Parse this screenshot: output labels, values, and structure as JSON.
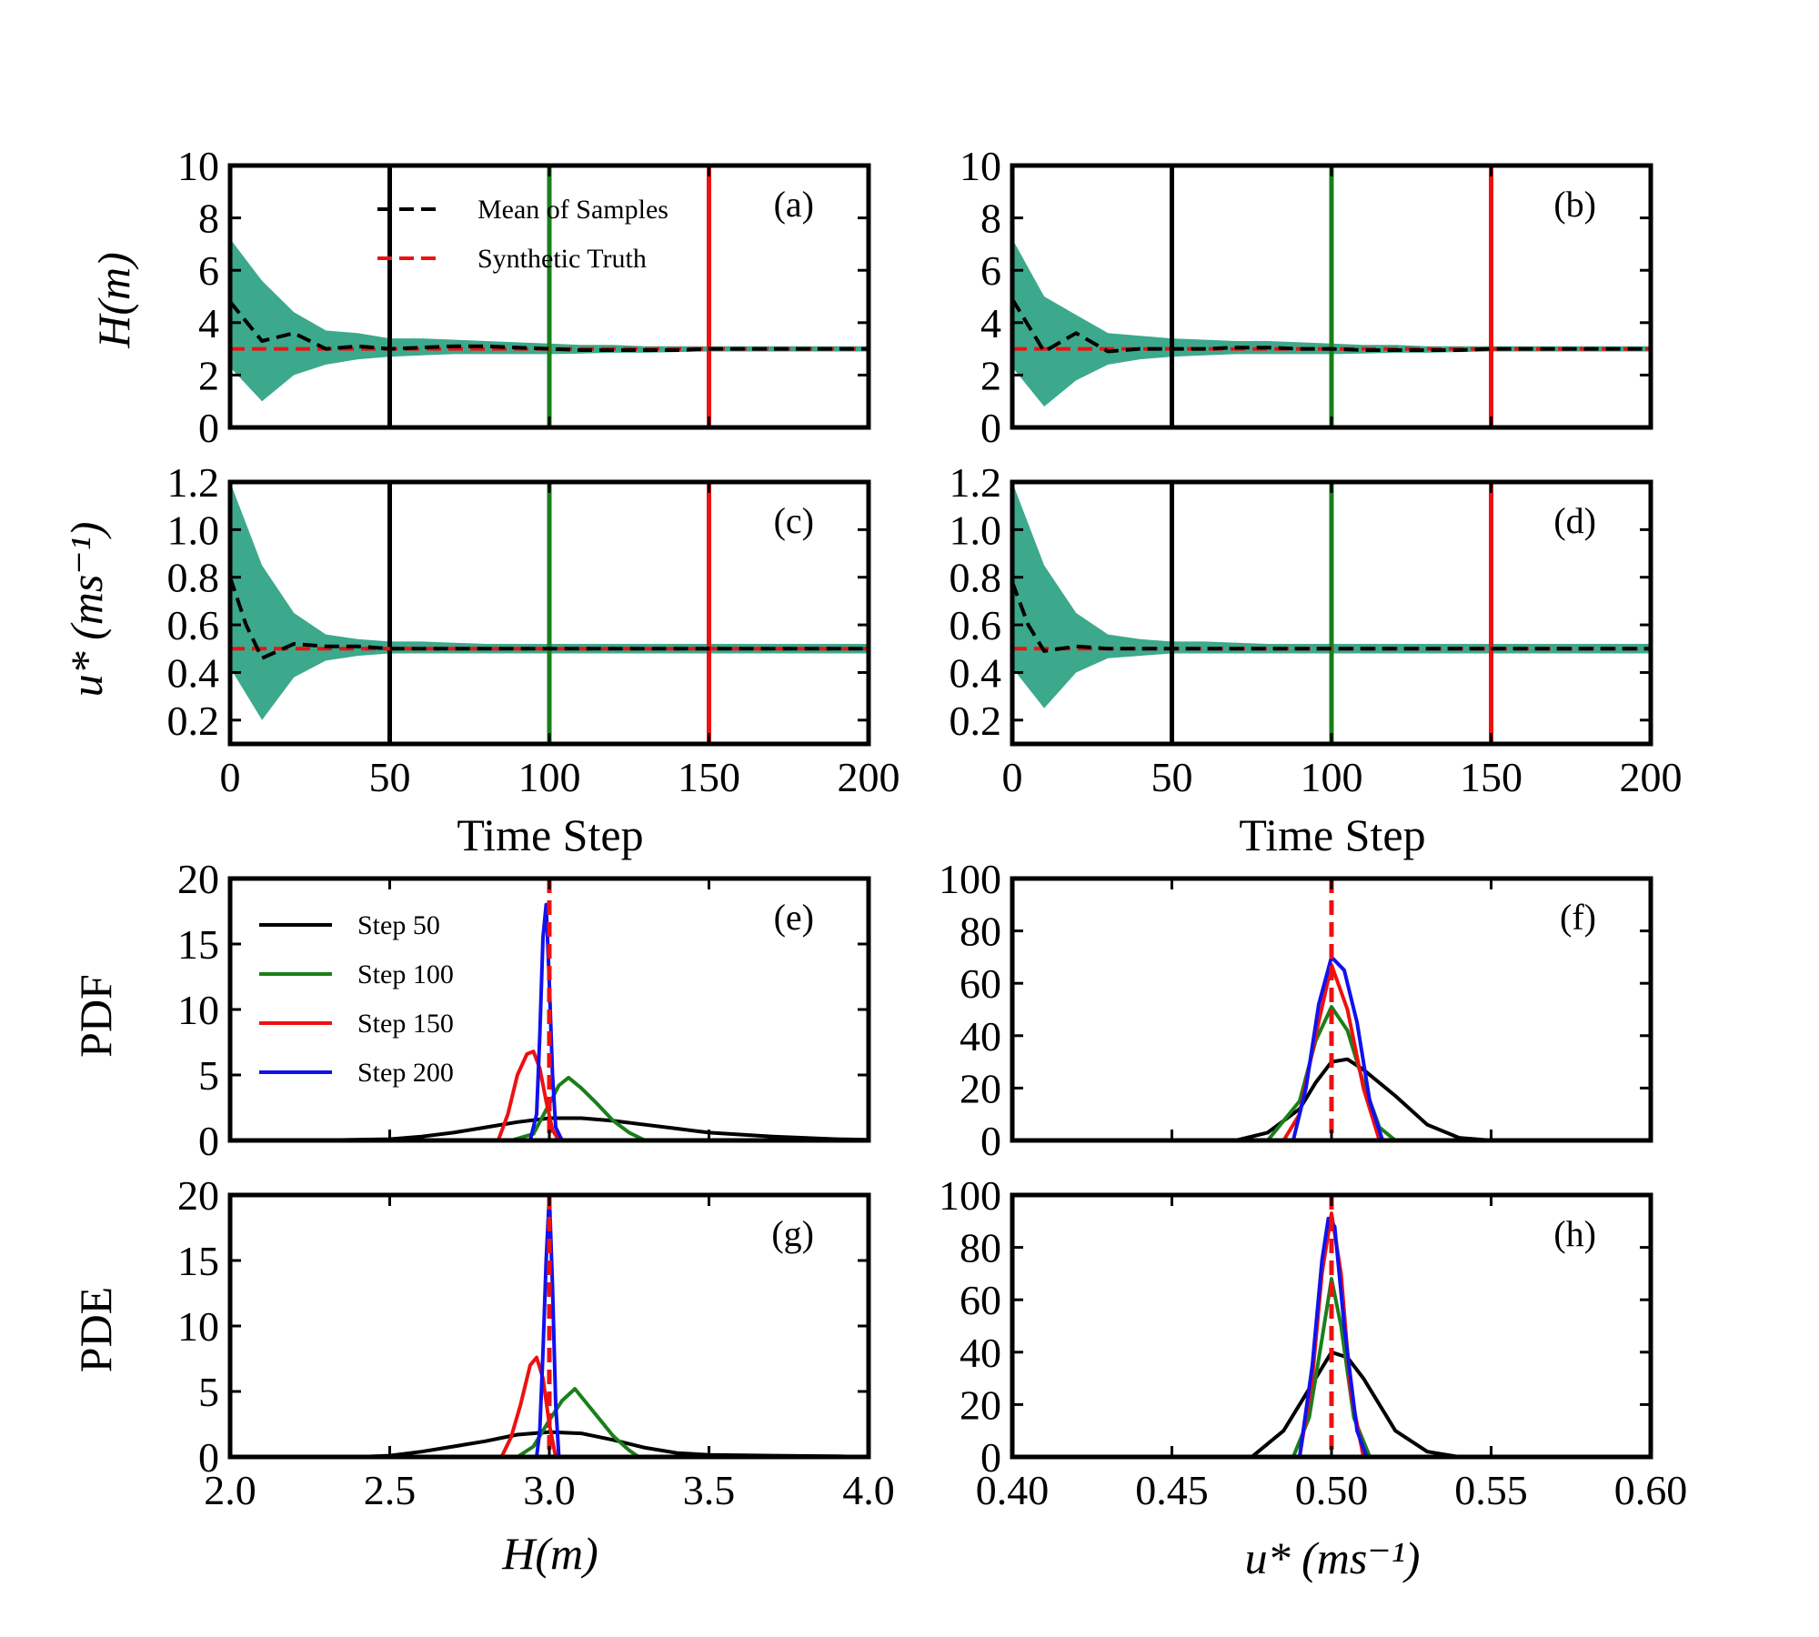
{
  "figure": {
    "xlabel_time": "Time Step",
    "ylabel_H": "H(m)",
    "ylabel_u": "u* (ms⁻¹)",
    "ylabel_pdf": "PDF",
    "ylabel_pde": "PDE",
    "xlabel_H": "H(m)",
    "xlabel_u": "u* (ms⁻¹)",
    "colors": {
      "ensemble": "#1a9a78",
      "mean": "#000000",
      "truth": "#ee1111",
      "step50": "#000000",
      "step100": "#1a7f1a",
      "step150": "#ee1111",
      "step200": "#1111ee"
    }
  },
  "chart_data": [
    {
      "id": "a",
      "panel_label": "(a)",
      "type": "line",
      "xlim": [
        0,
        200
      ],
      "ylim": [
        0,
        10
      ],
      "yticks": [
        "0",
        "2",
        "4",
        "6",
        "8",
        "10"
      ],
      "legend": [
        "Mean of Samples",
        "Synthetic Truth"
      ],
      "vlines": [
        {
          "x": 50,
          "label": "Step 50"
        },
        {
          "x": 100,
          "label": "Step 100"
        },
        {
          "x": 150,
          "label": "Step 150"
        },
        {
          "x": 200,
          "label": "Step 200"
        }
      ],
      "series": [
        {
          "name": "Mean of Samples",
          "x": [
            0,
            10,
            20,
            30,
            40,
            50,
            60,
            70,
            80,
            90,
            100,
            110,
            120,
            130,
            140,
            150,
            160,
            170,
            180,
            190,
            200
          ],
          "values": [
            4.8,
            3.3,
            3.6,
            3.0,
            3.1,
            3.0,
            3.05,
            3.1,
            3.1,
            3.05,
            3.0,
            2.95,
            2.95,
            2.95,
            2.95,
            3.0,
            3.0,
            3.0,
            3.0,
            3.0,
            3.0
          ]
        },
        {
          "name": "Synthetic Truth",
          "x": [
            0,
            200
          ],
          "values": [
            3.0,
            3.0
          ]
        },
        {
          "name": "Ensemble upper",
          "x": [
            0,
            10,
            20,
            30,
            40,
            50,
            60,
            70,
            80,
            90,
            100,
            110,
            120,
            130,
            140,
            150,
            160,
            170,
            180,
            190,
            200
          ],
          "values": [
            7.2,
            5.6,
            4.4,
            3.7,
            3.6,
            3.4,
            3.4,
            3.35,
            3.3,
            3.25,
            3.2,
            3.15,
            3.15,
            3.1,
            3.1,
            3.1,
            3.1,
            3.1,
            3.1,
            3.1,
            3.1
          ]
        },
        {
          "name": "Ensemble lower",
          "x": [
            0,
            10,
            20,
            30,
            40,
            50,
            60,
            70,
            80,
            90,
            100,
            110,
            120,
            130,
            140,
            150,
            160,
            170,
            180,
            190,
            200
          ],
          "values": [
            2.3,
            1.0,
            2.0,
            2.4,
            2.6,
            2.7,
            2.75,
            2.8,
            2.8,
            2.8,
            2.8,
            2.82,
            2.85,
            2.85,
            2.88,
            2.9,
            2.9,
            2.9,
            2.9,
            2.9,
            2.9
          ]
        }
      ]
    },
    {
      "id": "b",
      "panel_label": "(b)",
      "type": "line",
      "xlim": [
        0,
        200
      ],
      "ylim": [
        0,
        10
      ],
      "yticks": [
        "0",
        "2",
        "4",
        "6",
        "8",
        "10"
      ],
      "vlines": [
        {
          "x": 50
        },
        {
          "x": 100
        },
        {
          "x": 150
        },
        {
          "x": 200
        }
      ],
      "series": [
        {
          "name": "Mean of Samples",
          "x": [
            0,
            10,
            20,
            30,
            40,
            50,
            60,
            70,
            80,
            90,
            100,
            110,
            120,
            130,
            140,
            150,
            160,
            170,
            180,
            190,
            200
          ],
          "values": [
            4.9,
            2.9,
            3.6,
            2.9,
            3.0,
            3.0,
            3.0,
            3.05,
            3.05,
            3.0,
            3.0,
            2.95,
            2.95,
            2.95,
            2.95,
            3.0,
            3.0,
            3.0,
            3.0,
            3.0,
            3.0
          ]
        },
        {
          "name": "Synthetic Truth",
          "x": [
            0,
            200
          ],
          "values": [
            3.0,
            3.0
          ]
        },
        {
          "name": "Ensemble upper",
          "x": [
            0,
            10,
            20,
            30,
            40,
            50,
            60,
            70,
            80,
            90,
            100,
            110,
            120,
            130,
            140,
            150,
            160,
            170,
            180,
            190,
            200
          ],
          "values": [
            7.2,
            5.0,
            4.3,
            3.6,
            3.5,
            3.4,
            3.35,
            3.3,
            3.3,
            3.25,
            3.2,
            3.15,
            3.15,
            3.1,
            3.1,
            3.1,
            3.1,
            3.1,
            3.1,
            3.1,
            3.1
          ]
        },
        {
          "name": "Ensemble lower",
          "x": [
            0,
            10,
            20,
            30,
            40,
            50,
            60,
            70,
            80,
            90,
            100,
            110,
            120,
            130,
            140,
            150,
            160,
            170,
            180,
            190,
            200
          ],
          "values": [
            2.3,
            0.8,
            1.8,
            2.4,
            2.6,
            2.7,
            2.75,
            2.8,
            2.8,
            2.8,
            2.8,
            2.82,
            2.85,
            2.85,
            2.88,
            2.9,
            2.9,
            2.9,
            2.9,
            2.9,
            2.9
          ]
        }
      ]
    },
    {
      "id": "c",
      "panel_label": "(c)",
      "type": "line",
      "xlim": [
        0,
        200
      ],
      "ylim": [
        0.1,
        1.2
      ],
      "yticks": [
        "0.2",
        "0.4",
        "0.6",
        "0.8",
        "1.0",
        "1.2"
      ],
      "xticks": [
        "0",
        "50",
        "100",
        "150",
        "200"
      ],
      "xlabel": "Time Step",
      "vlines": [
        {
          "x": 50
        },
        {
          "x": 100
        },
        {
          "x": 150
        },
        {
          "x": 200
        }
      ],
      "series": [
        {
          "name": "Mean of Samples",
          "x": [
            0,
            5,
            10,
            15,
            20,
            30,
            40,
            50,
            200
          ],
          "values": [
            0.8,
            0.6,
            0.46,
            0.49,
            0.52,
            0.51,
            0.51,
            0.5,
            0.5
          ]
        },
        {
          "name": "Synthetic Truth",
          "x": [
            0,
            200
          ],
          "values": [
            0.5,
            0.5
          ]
        },
        {
          "name": "Ensemble upper",
          "x": [
            0,
            10,
            20,
            30,
            40,
            50,
            60,
            80,
            100,
            200
          ],
          "values": [
            1.2,
            0.85,
            0.65,
            0.56,
            0.54,
            0.53,
            0.53,
            0.52,
            0.52,
            0.52
          ]
        },
        {
          "name": "Ensemble lower",
          "x": [
            0,
            10,
            20,
            30,
            40,
            50,
            60,
            80,
            100,
            200
          ],
          "values": [
            0.42,
            0.2,
            0.38,
            0.45,
            0.47,
            0.48,
            0.48,
            0.48,
            0.48,
            0.48
          ]
        }
      ]
    },
    {
      "id": "d",
      "panel_label": "(d)",
      "type": "line",
      "xlim": [
        0,
        200
      ],
      "ylim": [
        0.1,
        1.2
      ],
      "yticks": [
        "0.2",
        "0.4",
        "0.6",
        "0.8",
        "1.0",
        "1.2"
      ],
      "xticks": [
        "0",
        "50",
        "100",
        "150",
        "200"
      ],
      "xlabel": "Time Step",
      "vlines": [
        {
          "x": 50
        },
        {
          "x": 100
        },
        {
          "x": 150
        },
        {
          "x": 200
        }
      ],
      "series": [
        {
          "name": "Mean of Samples",
          "x": [
            0,
            5,
            10,
            20,
            30,
            40,
            50,
            200
          ],
          "values": [
            0.78,
            0.6,
            0.49,
            0.51,
            0.5,
            0.5,
            0.5,
            0.5
          ]
        },
        {
          "name": "Synthetic Truth",
          "x": [
            0,
            200
          ],
          "values": [
            0.5,
            0.5
          ]
        },
        {
          "name": "Ensemble upper",
          "x": [
            0,
            10,
            20,
            30,
            40,
            50,
            60,
            80,
            100,
            200
          ],
          "values": [
            1.2,
            0.85,
            0.65,
            0.56,
            0.54,
            0.53,
            0.53,
            0.52,
            0.52,
            0.52
          ]
        },
        {
          "name": "Ensemble lower",
          "x": [
            0,
            10,
            20,
            30,
            40,
            50,
            60,
            80,
            100,
            200
          ],
          "values": [
            0.42,
            0.25,
            0.4,
            0.46,
            0.47,
            0.48,
            0.48,
            0.48,
            0.48,
            0.48
          ]
        }
      ]
    },
    {
      "id": "e",
      "panel_label": "(e)",
      "type": "line",
      "xlim": [
        2.0,
        4.0
      ],
      "ylim": [
        0,
        20
      ],
      "yticks": [
        "0",
        "5",
        "10",
        "15",
        "20"
      ],
      "ylabel": "PDF",
      "truth": 3.0,
      "legend": [
        "Step 50",
        "Step 100",
        "Step 150",
        "Step 200"
      ],
      "series": [
        {
          "name": "Step 50",
          "x": [
            2.0,
            2.3,
            2.5,
            2.6,
            2.7,
            2.8,
            2.9,
            3.0,
            3.1,
            3.2,
            3.3,
            3.4,
            3.5,
            3.7,
            3.9,
            4.0
          ],
          "values": [
            0,
            0.02,
            0.1,
            0.3,
            0.6,
            1.0,
            1.4,
            1.7,
            1.7,
            1.5,
            1.2,
            0.9,
            0.6,
            0.3,
            0.1,
            0.05
          ]
        },
        {
          "name": "Step 100",
          "x": [
            2.88,
            2.95,
            3.0,
            3.03,
            3.06,
            3.1,
            3.15,
            3.2,
            3.25,
            3.3
          ],
          "values": [
            0,
            0.5,
            2.8,
            4.2,
            4.8,
            4.0,
            2.8,
            1.5,
            0.6,
            0
          ]
        },
        {
          "name": "Step 150",
          "x": [
            2.84,
            2.87,
            2.9,
            2.93,
            2.95,
            2.97,
            2.99,
            3.01,
            3.03
          ],
          "values": [
            0,
            2.0,
            5.0,
            6.6,
            6.8,
            5.5,
            3.0,
            0.8,
            0
          ]
        },
        {
          "name": "Step 200",
          "x": [
            2.94,
            2.96,
            2.97,
            2.98,
            2.99,
            3.0,
            3.01,
            3.02,
            3.04
          ],
          "values": [
            0,
            2.0,
            8.0,
            15.5,
            18.0,
            12.0,
            5.0,
            1.0,
            0
          ]
        }
      ]
    },
    {
      "id": "f",
      "panel_label": "(f)",
      "type": "line",
      "xlim": [
        0.4,
        0.6
      ],
      "ylim": [
        0,
        100
      ],
      "yticks": [
        "0",
        "20",
        "40",
        "60",
        "80",
        "100"
      ],
      "truth": 0.5,
      "series": [
        {
          "name": "Step 50",
          "x": [
            0.47,
            0.48,
            0.49,
            0.495,
            0.5,
            0.505,
            0.51,
            0.52,
            0.53,
            0.54,
            0.55
          ],
          "values": [
            0,
            3,
            12,
            22,
            30,
            31,
            27,
            17,
            6,
            1,
            0
          ]
        },
        {
          "name": "Step 100",
          "x": [
            0.48,
            0.49,
            0.495,
            0.5,
            0.505,
            0.51,
            0.515,
            0.52
          ],
          "values": [
            0,
            15,
            38,
            51,
            42,
            22,
            5,
            0
          ]
        },
        {
          "name": "Step 150",
          "x": [
            0.485,
            0.49,
            0.495,
            0.5,
            0.505,
            0.51,
            0.515
          ],
          "values": [
            0,
            10,
            40,
            67,
            50,
            20,
            0
          ]
        },
        {
          "name": "Step 200",
          "x": [
            0.488,
            0.492,
            0.496,
            0.5,
            0.504,
            0.508,
            0.512,
            0.516
          ],
          "values": [
            0,
            20,
            52,
            70,
            65,
            45,
            15,
            0
          ]
        }
      ]
    },
    {
      "id": "g",
      "panel_label": "(g)",
      "type": "line",
      "xlim": [
        2.0,
        4.0
      ],
      "ylim": [
        0,
        20
      ],
      "yticks": [
        "0",
        "5",
        "10",
        "15",
        "20"
      ],
      "xticks": [
        "2.0",
        "2.5",
        "3.0",
        "3.5",
        "4.0"
      ],
      "ylabel": "PDE",
      "xlabel": "H(m)",
      "truth": 3.0,
      "series": [
        {
          "name": "Step 50",
          "x": [
            2.4,
            2.5,
            2.6,
            2.7,
            2.8,
            2.9,
            3.0,
            3.1,
            3.2,
            3.3,
            3.4,
            3.5,
            3.7,
            3.9,
            4.0
          ],
          "values": [
            0,
            0.1,
            0.4,
            0.8,
            1.2,
            1.7,
            1.9,
            1.8,
            1.3,
            0.7,
            0.3,
            0.15,
            0.1,
            0.05,
            0
          ]
        },
        {
          "name": "Step 100",
          "x": [
            2.9,
            2.95,
            3.0,
            3.04,
            3.08,
            3.12,
            3.16,
            3.2,
            3.25,
            3.28
          ],
          "values": [
            0,
            0.8,
            2.8,
            4.3,
            5.2,
            4.0,
            2.8,
            1.6,
            0.5,
            0
          ]
        },
        {
          "name": "Step 150",
          "x": [
            2.85,
            2.88,
            2.91,
            2.94,
            2.96,
            2.98,
            3.0,
            3.02
          ],
          "values": [
            0,
            1.5,
            4.0,
            7.0,
            7.6,
            6.0,
            2.5,
            0
          ]
        },
        {
          "name": "Step 200",
          "x": [
            2.96,
            2.97,
            2.98,
            2.99,
            3.0,
            3.01,
            3.02,
            3.03
          ],
          "values": [
            0,
            2.0,
            8.0,
            15.0,
            20.0,
            13.0,
            4.0,
            0
          ]
        }
      ]
    },
    {
      "id": "h",
      "panel_label": "(h)",
      "type": "line",
      "xlim": [
        0.4,
        0.6
      ],
      "ylim": [
        0,
        100
      ],
      "yticks": [
        "0",
        "20",
        "40",
        "60",
        "80",
        "100"
      ],
      "xticks": [
        "0.40",
        "0.45",
        "0.50",
        "0.55",
        "0.60"
      ],
      "xlabel": "u* (ms⁻¹)",
      "truth": 0.5,
      "series": [
        {
          "name": "Step 50",
          "x": [
            0.475,
            0.485,
            0.49,
            0.495,
            0.5,
            0.505,
            0.51,
            0.515,
            0.52,
            0.53,
            0.54
          ],
          "values": [
            0,
            10,
            20,
            30,
            40,
            38,
            30,
            20,
            10,
            2,
            0
          ]
        },
        {
          "name": "Step 100",
          "x": [
            0.488,
            0.493,
            0.497,
            0.5,
            0.503,
            0.507,
            0.512
          ],
          "values": [
            0,
            15,
            45,
            68,
            50,
            15,
            0
          ]
        },
        {
          "name": "Step 150",
          "x": [
            0.49,
            0.494,
            0.497,
            0.5,
            0.503,
            0.506,
            0.51
          ],
          "values": [
            0,
            30,
            70,
            93,
            70,
            25,
            0
          ]
        },
        {
          "name": "Step 200",
          "x": [
            0.49,
            0.494,
            0.497,
            0.499,
            0.501,
            0.504,
            0.508,
            0.511
          ],
          "values": [
            0,
            35,
            75,
            91,
            88,
            50,
            10,
            0
          ]
        }
      ]
    }
  ]
}
